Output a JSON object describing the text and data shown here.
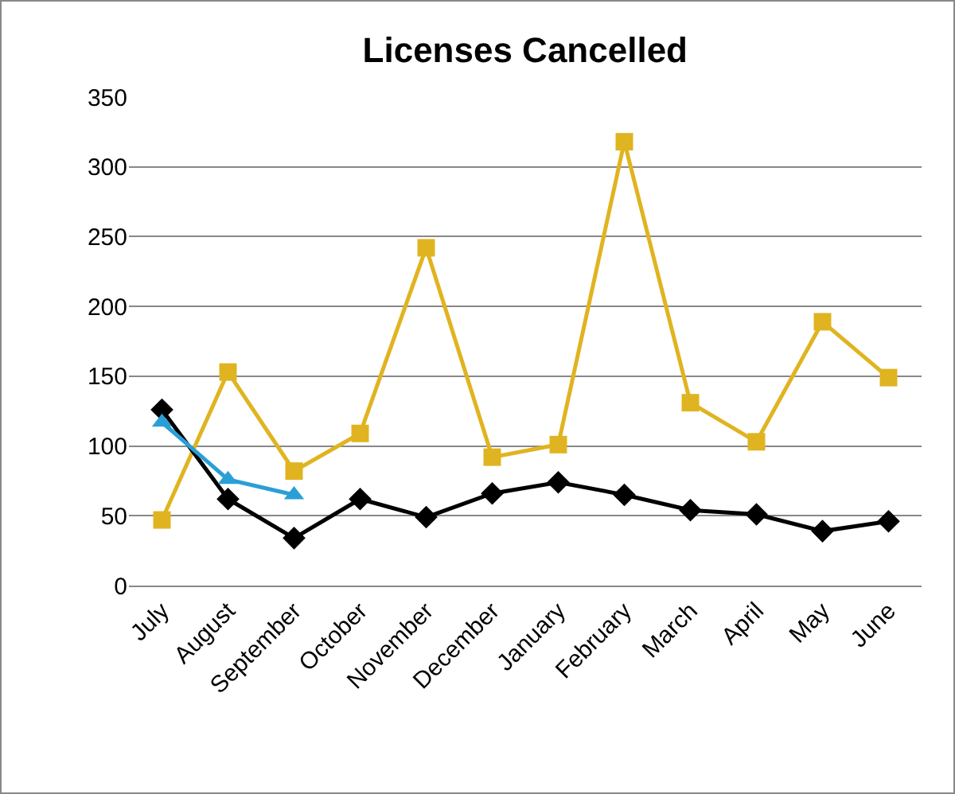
{
  "chart_data": {
    "type": "line",
    "title": "Licenses Cancelled",
    "categories": [
      "July",
      "August",
      "September",
      "October",
      "November",
      "December",
      "January",
      "February",
      "March",
      "April",
      "May",
      "June"
    ],
    "series": [
      {
        "color": "#e0b420",
        "marker": "square",
        "values": [
          47,
          153,
          82,
          109,
          242,
          92,
          101,
          318,
          131,
          103,
          189,
          149
        ]
      },
      {
        "color": "#000000",
        "marker": "diamond",
        "values": [
          126,
          62,
          34,
          62,
          49,
          66,
          74,
          65,
          54,
          51,
          39,
          46
        ]
      },
      {
        "color": "#2a9fd6",
        "marker": "triangle",
        "values": [
          117,
          76,
          65,
          null,
          null,
          null,
          null,
          null,
          null,
          null,
          null,
          null
        ]
      }
    ],
    "ylim": [
      0,
      350
    ],
    "yticks": [
      0,
      50,
      100,
      150,
      200,
      250,
      300,
      350
    ],
    "grid": "y",
    "legend": false
  }
}
